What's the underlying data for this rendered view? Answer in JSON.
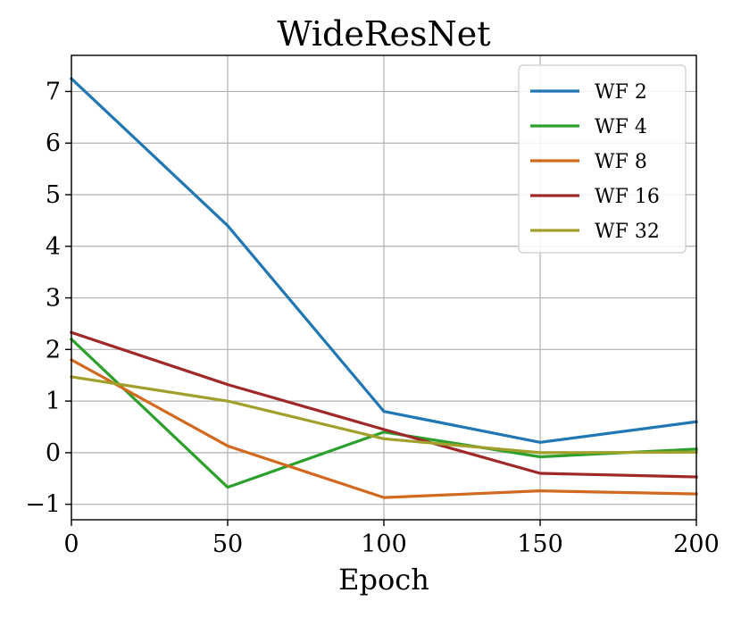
{
  "chart_data": {
    "type": "line",
    "title": "WideResNet",
    "xlabel": "Epoch",
    "ylabel": "",
    "x": [
      0,
      50,
      100,
      150,
      200
    ],
    "xlim": [
      0,
      200
    ],
    "ylim": [
      -1.3,
      7.7
    ],
    "xticks": [
      0,
      50,
      100,
      150,
      200
    ],
    "yticks": [
      -1,
      0,
      1,
      2,
      3,
      4,
      5,
      6,
      7
    ],
    "xtick_labels": [
      "0",
      "50",
      "100",
      "150",
      "200"
    ],
    "ytick_labels": [
      "−1",
      "0",
      "1",
      "2",
      "3",
      "4",
      "5",
      "6",
      "7"
    ],
    "grid": true,
    "legend_position": "top-right",
    "series": [
      {
        "name": "WF 2",
        "color": "#1f77b4",
        "values": [
          7.25,
          4.4,
          0.8,
          0.2,
          0.6
        ]
      },
      {
        "name": "WF 4",
        "color": "#2ca02c",
        "values": [
          2.2,
          -0.67,
          0.4,
          -0.08,
          0.07
        ]
      },
      {
        "name": "WF 8",
        "color": "#d2691e",
        "values": [
          1.8,
          0.13,
          -0.87,
          -0.74,
          -0.8
        ]
      },
      {
        "name": "WF 16",
        "color": "#a02828",
        "values": [
          2.33,
          1.32,
          0.45,
          -0.4,
          -0.47
        ]
      },
      {
        "name": "WF 32",
        "color": "#a0a02a",
        "values": [
          1.47,
          1.0,
          0.27,
          0.0,
          0.01
        ]
      }
    ]
  }
}
